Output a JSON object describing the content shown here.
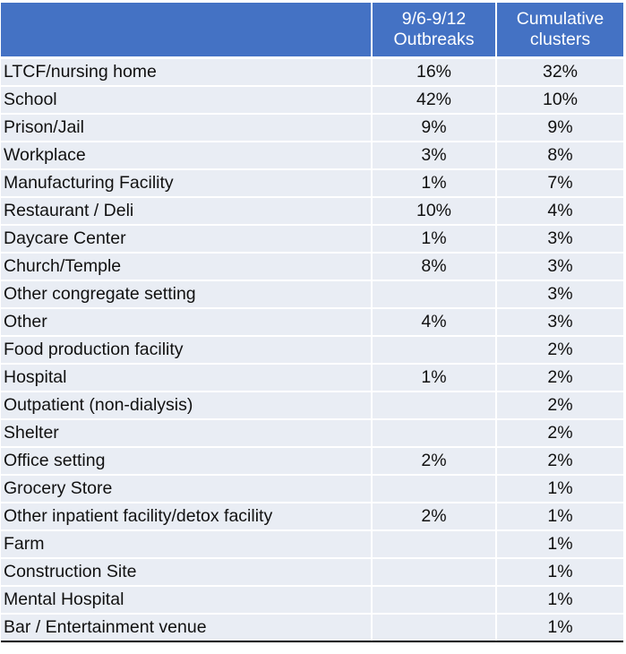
{
  "table": {
    "header": {
      "setting": "",
      "week_line1": "9/6-9/12",
      "week_line2": "Outbreaks",
      "cumulative_line1": "Cumulative",
      "cumulative_line2": "clusters"
    },
    "rows": [
      {
        "setting": "LTCF/nursing home",
        "week": "16%",
        "cumulative": "32%"
      },
      {
        "setting": "School",
        "week": "42%",
        "cumulative": "10%"
      },
      {
        "setting": "Prison/Jail",
        "week": "9%",
        "cumulative": "9%"
      },
      {
        "setting": "Workplace",
        "week": "3%",
        "cumulative": "8%"
      },
      {
        "setting": "Manufacturing Facility",
        "week": "1%",
        "cumulative": "7%"
      },
      {
        "setting": "Restaurant / Deli",
        "week": "10%",
        "cumulative": "4%"
      },
      {
        "setting": "Daycare Center",
        "week": "1%",
        "cumulative": "3%"
      },
      {
        "setting": "Church/Temple",
        "week": "8%",
        "cumulative": "3%"
      },
      {
        "setting": "Other congregate setting",
        "week": "",
        "cumulative": "3%"
      },
      {
        "setting": "Other",
        "week": "4%",
        "cumulative": "3%"
      },
      {
        "setting": "Food production facility",
        "week": "",
        "cumulative": "2%"
      },
      {
        "setting": "Hospital",
        "week": "1%",
        "cumulative": "2%"
      },
      {
        "setting": "Outpatient (non-dialysis)",
        "week": "",
        "cumulative": "2%"
      },
      {
        "setting": "Shelter",
        "week": "",
        "cumulative": "2%"
      },
      {
        "setting": "Office setting",
        "week": "2%",
        "cumulative": "2%"
      },
      {
        "setting": "Grocery Store",
        "week": "",
        "cumulative": "1%"
      },
      {
        "setting": "Other inpatient facility/detox facility",
        "week": "2%",
        "cumulative": "1%"
      },
      {
        "setting": "Farm",
        "week": "",
        "cumulative": "1%"
      },
      {
        "setting": "Construction Site",
        "week": "",
        "cumulative": "1%"
      },
      {
        "setting": "Mental Hospital",
        "week": "",
        "cumulative": "1%"
      },
      {
        "setting": "Bar / Entertainment venue",
        "week": "",
        "cumulative": "1%"
      }
    ]
  },
  "colors": {
    "header_bg": "#4472c4",
    "header_text": "#ffffff",
    "row_bg": "#e9edf4",
    "bottom_rule": "#000000"
  }
}
